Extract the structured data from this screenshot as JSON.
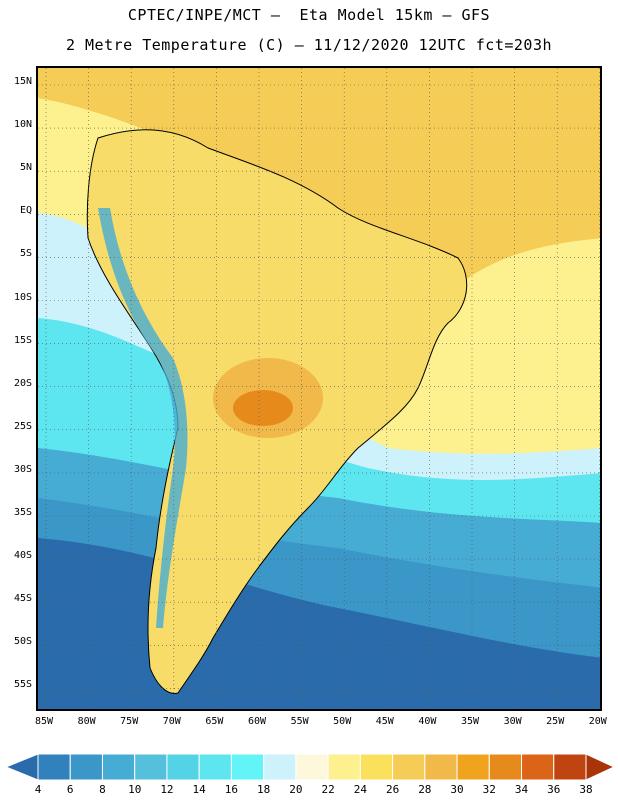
{
  "title": {
    "line1": "CPTEC/INPE/MCT –  Eta Model 15km – GFS",
    "line2": "2 Metre Temperature (C) – 11/12/2020 12UTC fct=203h"
  },
  "lat_labels": [
    "15N",
    "10N",
    "5N",
    "EQ",
    "5S",
    "10S",
    "15S",
    "20S",
    "25S",
    "30S",
    "35S",
    "40S",
    "45S",
    "50S",
    "55S"
  ],
  "lon_labels": [
    "85W",
    "80W",
    "75W",
    "70W",
    "65W",
    "60W",
    "55W",
    "50W",
    "45W",
    "40W",
    "35W",
    "30W",
    "25W",
    "20W"
  ],
  "colorbar": {
    "labels": [
      "4",
      "6",
      "8",
      "10",
      "12",
      "14",
      "16",
      "18",
      "20",
      "22",
      "24",
      "26",
      "28",
      "30",
      "32",
      "34",
      "36",
      "38"
    ],
    "colors": [
      "#2a6cab",
      "#3181bd",
      "#3c97c9",
      "#46acd3",
      "#54c0dc",
      "#54d2e6",
      "#5ee6f0",
      "#62f4f6",
      "#cef2fb",
      "#fdf8dc",
      "#fdf08e",
      "#fbe05c",
      "#f4cc56",
      "#f0b94a",
      "#f0a41e",
      "#e68a1c",
      "#dc6418",
      "#c04410",
      "#a83408"
    ]
  },
  "map": {
    "colors": {
      "ocean_deep": "#2a6cab",
      "ocean_mid": "#3c97c9",
      "ocean_light": "#46acd3",
      "ocean_cyan": "#5ee6f0",
      "ocean_pale": "#cef2fb",
      "cream": "#fdf8dc",
      "yellow": "#f7dc6a",
      "gold": "#f4cc56",
      "orange": "#f0b94a",
      "darkorange": "#e68a1c",
      "hot": "#dc6418",
      "andes": "#46acd3",
      "border": "#000000"
    }
  }
}
